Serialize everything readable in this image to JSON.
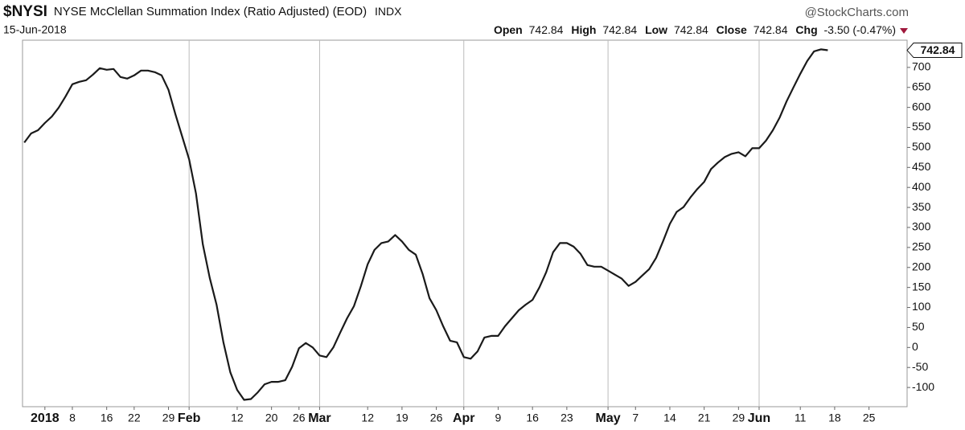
{
  "header": {
    "symbol": "$NYSI",
    "name": "NYSE McClellan Summation Index (Ratio Adjusted) (EOD)",
    "exchange": "INDX",
    "brand": "@StockCharts.com",
    "date": "15-Jun-2018",
    "open_label": "Open",
    "open": "742.84",
    "high_label": "High",
    "high": "742.84",
    "low_label": "Low",
    "low": "742.84",
    "close_label": "Close",
    "close": "742.84",
    "chg_label": "Chg",
    "chg": "-3.50 (-0.47%)"
  },
  "chart_data": {
    "type": "line",
    "color": "#1a1a1a",
    "grid": "x",
    "ylim": [
      -148,
      768
    ],
    "yticks": [
      -100,
      -50,
      0,
      50,
      100,
      150,
      200,
      250,
      300,
      350,
      400,
      450,
      500,
      550,
      600,
      650,
      700
    ],
    "categories": [
      null,
      null,
      null,
      "2018",
      null,
      null,
      null,
      "8",
      null,
      null,
      null,
      null,
      "16",
      null,
      null,
      null,
      "22",
      null,
      null,
      null,
      null,
      "29",
      null,
      null,
      "Feb",
      null,
      null,
      null,
      null,
      null,
      null,
      "12",
      null,
      null,
      null,
      null,
      "20",
      null,
      null,
      null,
      "26",
      null,
      null,
      "Mar",
      null,
      null,
      null,
      null,
      null,
      null,
      "12",
      null,
      null,
      null,
      null,
      "19",
      null,
      null,
      null,
      null,
      "26",
      null,
      null,
      null,
      "Apr",
      null,
      null,
      null,
      null,
      "9",
      null,
      null,
      null,
      null,
      "16",
      null,
      null,
      null,
      null,
      "23",
      null,
      null,
      null,
      null,
      null,
      "May",
      null,
      null,
      null,
      "7",
      null,
      null,
      null,
      null,
      "14",
      null,
      null,
      null,
      null,
      "21",
      null,
      null,
      null,
      null,
      "29",
      null,
      null,
      "Jun",
      null,
      null,
      null,
      null,
      null,
      "11",
      null,
      null,
      null,
      null,
      "18",
      null,
      null,
      null,
      null,
      "25",
      null,
      null,
      null,
      null
    ],
    "values": [
      512,
      535,
      543,
      561,
      577,
      599,
      627,
      658,
      664,
      668,
      682,
      698,
      694,
      696,
      676,
      672,
      680,
      692,
      692,
      688,
      680,
      644,
      583,
      527,
      470,
      385,
      258,
      174,
      107,
      12,
      -62,
      -106,
      -131,
      -129,
      -112,
      -92,
      -86,
      -86,
      -82,
      -48,
      -2,
      11,
      0,
      -20,
      -24,
      0,
      37,
      73,
      103,
      153,
      208,
      244,
      261,
      265,
      281,
      265,
      244,
      232,
      184,
      123,
      93,
      53,
      17,
      13,
      -24,
      -28,
      -10,
      25,
      29,
      29,
      53,
      73,
      93,
      107,
      119,
      150,
      188,
      238,
      261,
      261,
      252,
      234,
      206,
      202,
      202,
      192,
      182,
      172,
      154,
      164,
      180,
      196,
      224,
      265,
      309,
      339,
      351,
      375,
      396,
      414,
      446,
      462,
      476,
      484,
      488,
      478,
      498,
      498,
      517,
      543,
      575,
      615,
      650,
      684,
      716,
      740,
      745,
      742.84,
      null,
      null,
      null,
      null,
      null,
      null,
      null,
      null,
      null,
      null
    ]
  }
}
